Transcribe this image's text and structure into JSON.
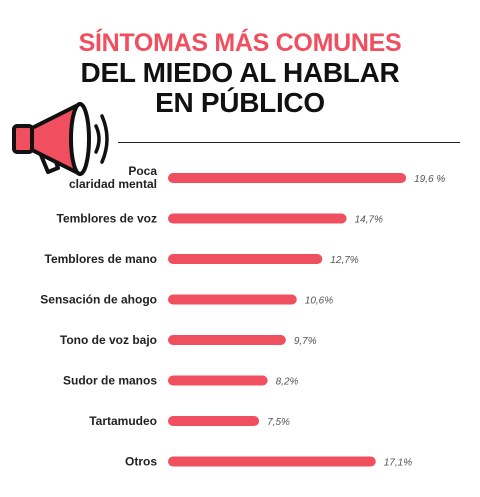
{
  "title": {
    "line1": "SÍNTOMAS MÁS COMUNES",
    "line2": "DEL MIEDO AL HABLAR",
    "line3": "EN PÚBLICO"
  },
  "colors": {
    "accent": "#f04f5f",
    "text": "#111111"
  },
  "icon": "megaphone-icon",
  "chart_data": {
    "type": "bar",
    "orientation": "horizontal",
    "categories": [
      [
        "Poca",
        "claridad mental"
      ],
      [
        "Temblores de voz"
      ],
      [
        "Temblores de mano"
      ],
      [
        "Sensación de ahogo"
      ],
      [
        "Tono de voz bajo"
      ],
      [
        "Sudor de manos"
      ],
      [
        "Tartamudeo"
      ],
      [
        "Otros"
      ]
    ],
    "values": [
      19.6,
      14.7,
      12.7,
      10.6,
      9.7,
      8.2,
      7.5,
      17.1
    ],
    "value_labels": [
      "19,6 %",
      "14,7%",
      "12,7%",
      "10,6%",
      "9,7%",
      "8,2%",
      "7,5%",
      "17,1%"
    ],
    "xlim": [
      0,
      20
    ],
    "grid": false,
    "legend": "none"
  }
}
